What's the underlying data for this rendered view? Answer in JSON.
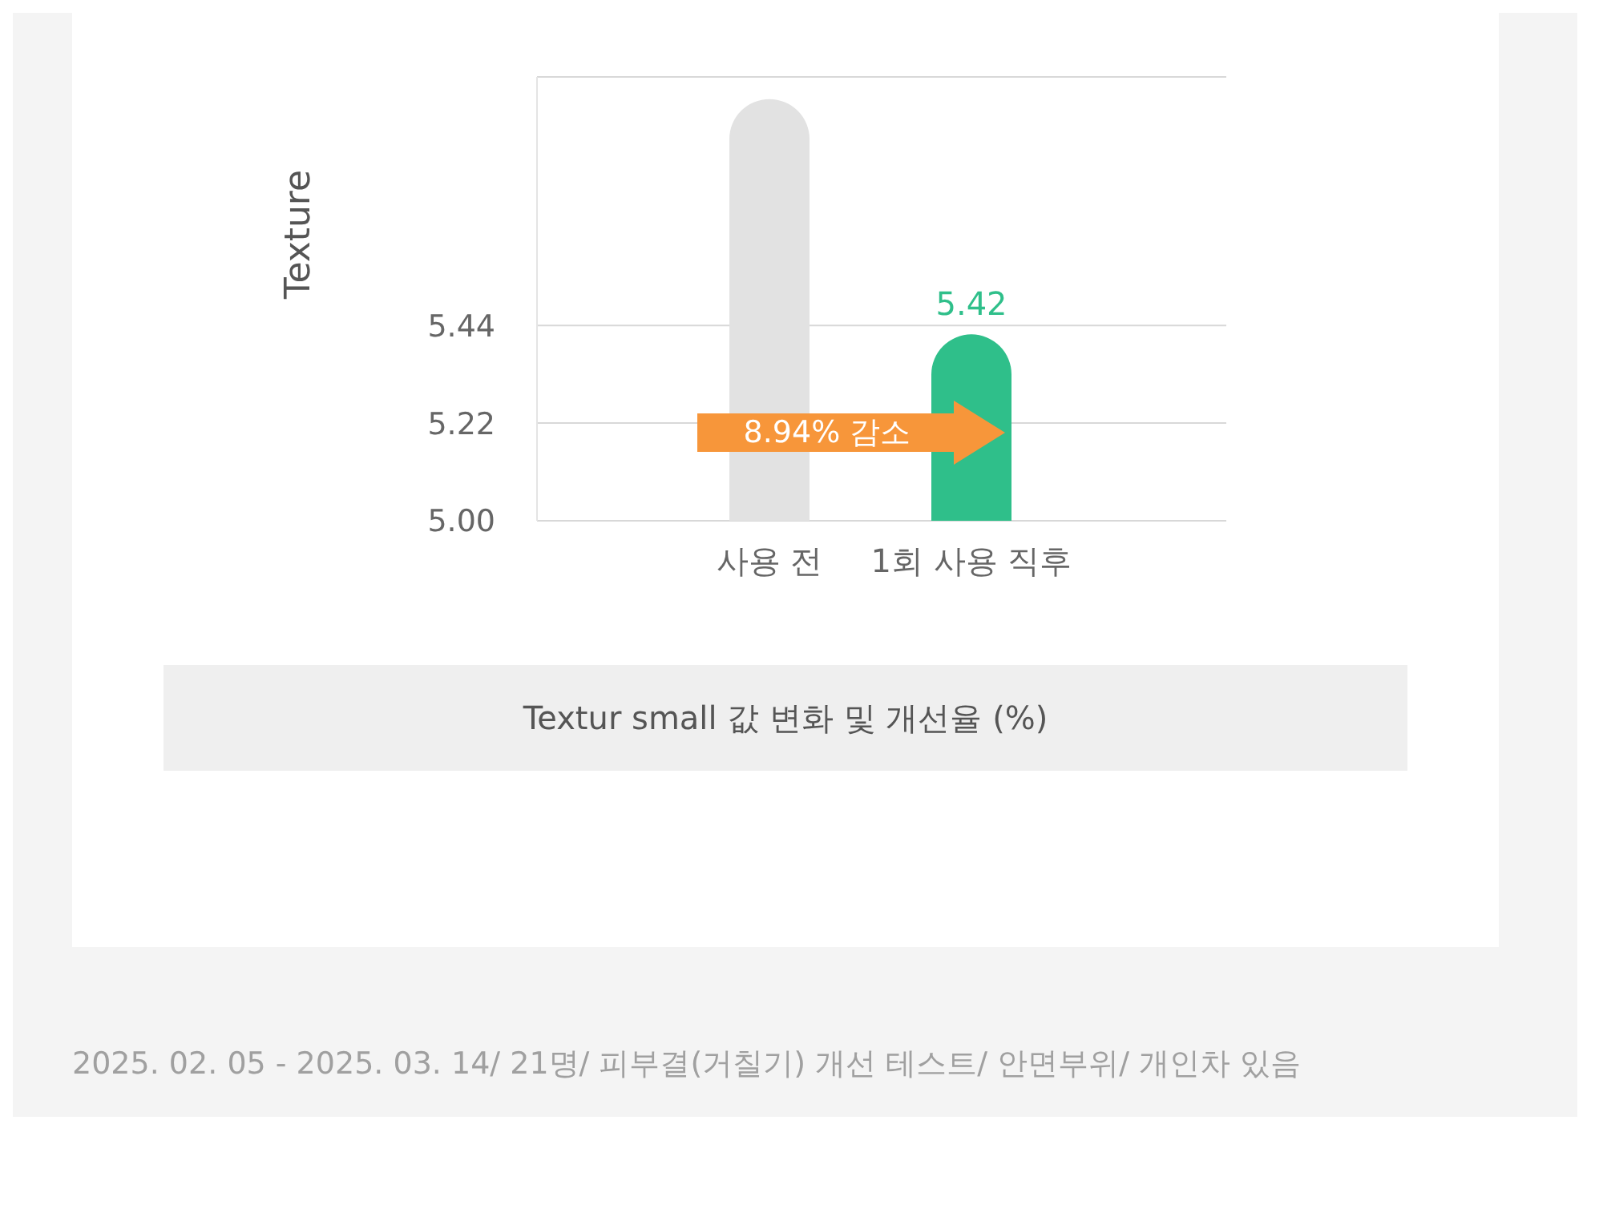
{
  "chart_data": {
    "type": "bar",
    "ylabel": "Texture",
    "categories": [
      "사용 전",
      "1회 사용 직후"
    ],
    "values": [
      5.95,
      5.42
    ],
    "colors": [
      "#e2e2e2",
      "#2fbf8a"
    ],
    "value_labels": [
      null,
      "5.42"
    ],
    "ylim": [
      5.0,
      6.0
    ],
    "yticks": [
      {
        "value": 5.0,
        "label": "5.00"
      },
      5.22,
      5.44
    ],
    "grid": "y",
    "annotations": [
      "8.94% 감소",
      "Textur small 값 변화 및 개선율 (%)",
      "2025. 02. 05 - 2025. 03. 14/ 21명/ 피부결(거칠기) 개선 테스트/ 안면부위/ 개인차 있음"
    ]
  }
}
